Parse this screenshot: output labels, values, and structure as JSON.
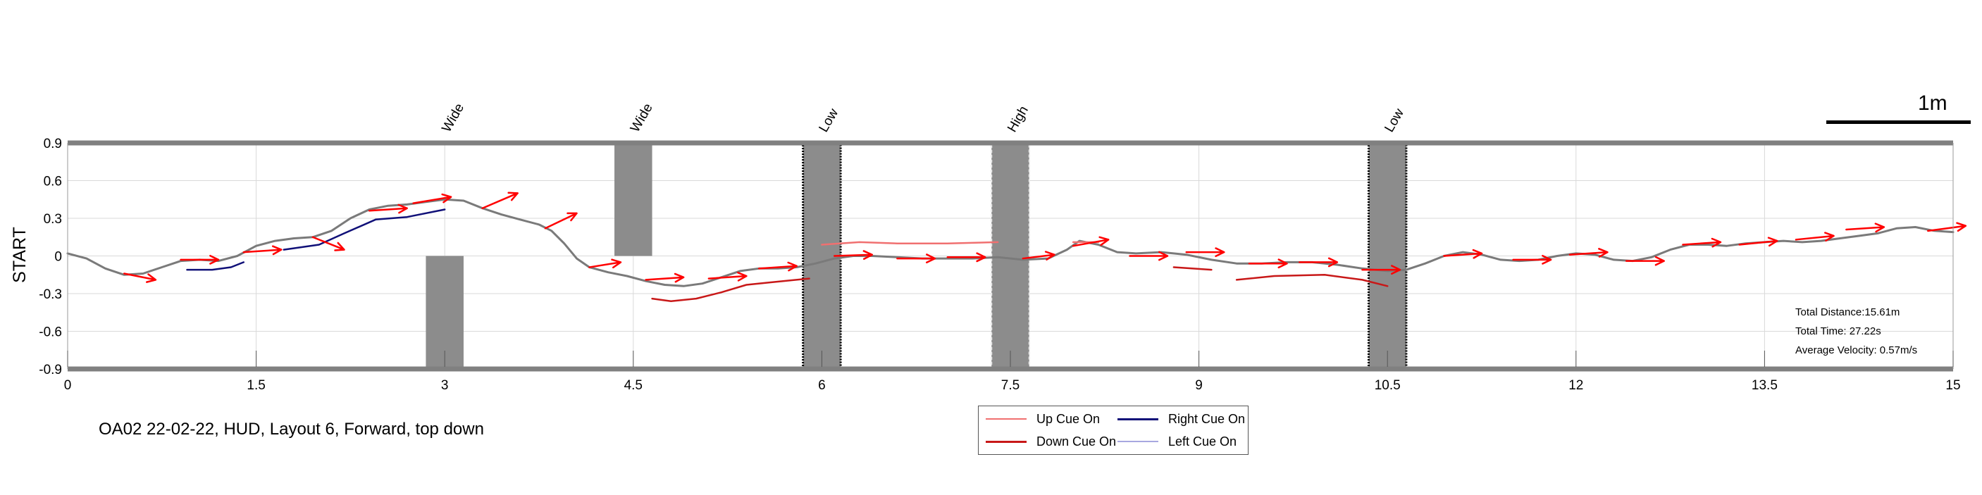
{
  "colors": {
    "path": "#7a7a7a",
    "up_cue": "#f07070",
    "down_cue": "#c81818",
    "right_cue": "#101078",
    "left_cue": "#a8a8e0",
    "arrow": "#ff0000",
    "obstacle": "#8c8c8c",
    "border": "#808080"
  },
  "header": {
    "scale_label": "1m"
  },
  "caption": "OA02 22-02-22, HUD, Layout 6, Forward, top down",
  "stats": {
    "distance": "Total Distance:15.61m",
    "time": "Total Time: 27.22s",
    "velocity": "Average Velocity: 0.57m/s"
  },
  "legend": {
    "up": "Up Cue On",
    "down": "Down Cue On",
    "right": "Right Cue On",
    "left": "Left Cue On"
  },
  "chart_data": {
    "type": "line",
    "title": "",
    "xlabel": "",
    "ylabel": "START",
    "xlim": [
      0,
      15
    ],
    "ylim": [
      -0.9,
      0.9
    ],
    "xticks": [
      "0",
      "1.5",
      "3",
      "4.5",
      "6",
      "7.5",
      "9",
      "10.5",
      "12",
      "13.5",
      "15"
    ],
    "yticks": [
      "0.9",
      "0.6",
      "0.3",
      "0",
      "-0.3",
      "-0.6",
      "-0.9"
    ],
    "grid": true,
    "obstacles": [
      {
        "label": "Wide",
        "type": "wide",
        "x": [
          2.85,
          3.15
        ],
        "y": [
          -0.9,
          0
        ]
      },
      {
        "label": "Wide",
        "type": "wide",
        "x": [
          4.35,
          4.65
        ],
        "y": [
          0,
          0.9
        ]
      },
      {
        "label": "Low",
        "type": "low",
        "x": [
          5.85,
          6.15
        ],
        "y": [
          -0.9,
          0.9
        ]
      },
      {
        "label": "High",
        "type": "high",
        "x": [
          7.35,
          7.65
        ],
        "y": [
          -0.9,
          0.9
        ]
      },
      {
        "label": "Low",
        "type": "low",
        "x": [
          10.35,
          10.65
        ],
        "y": [
          -0.9,
          0.9
        ]
      }
    ],
    "series": [
      {
        "name": "Path",
        "color": "path",
        "x": [
          0,
          0.15,
          0.3,
          0.45,
          0.6,
          0.75,
          0.9,
          1.05,
          1.2,
          1.35,
          1.5,
          1.65,
          1.8,
          1.95,
          2.1,
          2.25,
          2.4,
          2.55,
          2.7,
          2.85,
          3.0,
          3.15,
          3.3,
          3.45,
          3.6,
          3.75,
          3.85,
          3.95,
          4.05,
          4.15,
          4.3,
          4.45,
          4.6,
          4.75,
          4.9,
          5.05,
          5.2,
          5.35,
          5.5,
          5.65,
          5.8,
          5.95,
          6.1,
          6.25,
          6.4,
          6.6,
          6.8,
          7.0,
          7.2,
          7.4,
          7.6,
          7.8,
          7.95,
          8.05,
          8.2,
          8.35,
          8.5,
          8.7,
          8.9,
          9.1,
          9.3,
          9.5,
          9.7,
          9.9,
          10.1,
          10.3,
          10.5,
          10.65,
          10.8,
          10.95,
          11.1,
          11.25,
          11.4,
          11.55,
          11.7,
          11.85,
          12.0,
          12.15,
          12.3,
          12.45,
          12.6,
          12.75,
          12.9,
          13.05,
          13.2,
          13.35,
          13.5,
          13.65,
          13.8,
          13.95,
          14.1,
          14.25,
          14.4,
          14.55,
          14.7,
          14.85,
          15.0
        ],
        "y": [
          0.02,
          -0.02,
          -0.1,
          -0.15,
          -0.14,
          -0.09,
          -0.04,
          -0.03,
          -0.04,
          0.0,
          0.08,
          0.12,
          0.14,
          0.15,
          0.2,
          0.3,
          0.37,
          0.4,
          0.41,
          0.43,
          0.45,
          0.44,
          0.38,
          0.33,
          0.29,
          0.25,
          0.2,
          0.1,
          -0.02,
          -0.09,
          -0.13,
          -0.16,
          -0.2,
          -0.23,
          -0.24,
          -0.22,
          -0.17,
          -0.12,
          -0.1,
          -0.1,
          -0.09,
          -0.06,
          -0.02,
          0.0,
          0.0,
          -0.01,
          -0.02,
          -0.02,
          -0.02,
          -0.01,
          -0.03,
          -0.02,
          0.05,
          0.12,
          0.09,
          0.03,
          0.02,
          0.03,
          0.01,
          -0.03,
          -0.06,
          -0.06,
          -0.05,
          -0.05,
          -0.07,
          -0.1,
          -0.12,
          -0.11,
          -0.06,
          0.0,
          0.03,
          0.01,
          -0.03,
          -0.04,
          -0.03,
          0.0,
          0.02,
          0.01,
          -0.03,
          -0.04,
          -0.01,
          0.05,
          0.09,
          0.09,
          0.08,
          0.1,
          0.11,
          0.12,
          0.11,
          0.12,
          0.14,
          0.16,
          0.18,
          0.22,
          0.23,
          0.2,
          0.19
        ]
      },
      {
        "name": "Up Cue On",
        "color": "up_cue",
        "x": [
          6.0,
          6.3,
          6.6,
          7.0,
          7.4
        ],
        "y": [
          0.09,
          0.11,
          0.1,
          0.1,
          0.11
        ]
      },
      {
        "name": "Up Cue On",
        "color": "up_cue",
        "x": [
          8.0,
          8.2
        ],
        "y": [
          0.11,
          0.11
        ]
      },
      {
        "name": "Down Cue On",
        "color": "down_cue",
        "x": [
          4.65,
          4.8,
          5.0,
          5.2,
          5.4,
          5.6,
          5.9
        ],
        "y": [
          -0.34,
          -0.36,
          -0.34,
          -0.29,
          -0.23,
          -0.21,
          -0.18
        ]
      },
      {
        "name": "Down Cue On",
        "color": "down_cue",
        "x": [
          8.8,
          9.1
        ],
        "y": [
          -0.09,
          -0.11
        ]
      },
      {
        "name": "Down Cue On",
        "color": "down_cue",
        "x": [
          9.3,
          9.6,
          10.0,
          10.3,
          10.5
        ],
        "y": [
          -0.19,
          -0.16,
          -0.15,
          -0.19,
          -0.24
        ]
      },
      {
        "name": "Right Cue On",
        "color": "right_cue",
        "x": [
          0.95,
          1.15,
          1.3,
          1.4
        ],
        "y": [
          -0.11,
          -0.11,
          -0.09,
          -0.05
        ]
      },
      {
        "name": "Right Cue On",
        "color": "right_cue",
        "x": [
          1.72,
          2.0,
          2.2,
          2.45,
          2.7,
          3.0
        ],
        "y": [
          0.05,
          0.09,
          0.18,
          0.29,
          0.31,
          0.37
        ]
      }
    ],
    "heading_arrows": [
      {
        "x": 0.45,
        "y": -0.14,
        "dx": 0.25,
        "dy": -0.05
      },
      {
        "x": 0.9,
        "y": -0.03,
        "dx": 0.3,
        "dy": 0.0
      },
      {
        "x": 1.4,
        "y": 0.03,
        "dx": 0.3,
        "dy": 0.02
      },
      {
        "x": 1.95,
        "y": 0.15,
        "dx": 0.25,
        "dy": -0.1
      },
      {
        "x": 2.4,
        "y": 0.36,
        "dx": 0.3,
        "dy": 0.02
      },
      {
        "x": 2.75,
        "y": 0.42,
        "dx": 0.3,
        "dy": 0.05
      },
      {
        "x": 3.3,
        "y": 0.38,
        "dx": 0.28,
        "dy": 0.12
      },
      {
        "x": 3.8,
        "y": 0.22,
        "dx": 0.25,
        "dy": 0.12
      },
      {
        "x": 4.15,
        "y": -0.09,
        "dx": 0.25,
        "dy": 0.04
      },
      {
        "x": 4.6,
        "y": -0.19,
        "dx": 0.3,
        "dy": 0.02
      },
      {
        "x": 5.1,
        "y": -0.18,
        "dx": 0.3,
        "dy": 0.02
      },
      {
        "x": 5.5,
        "y": -0.1,
        "dx": 0.3,
        "dy": 0.02
      },
      {
        "x": 6.1,
        "y": 0.0,
        "dx": 0.3,
        "dy": 0.01
      },
      {
        "x": 6.6,
        "y": -0.02,
        "dx": 0.3,
        "dy": 0.0
      },
      {
        "x": 7.0,
        "y": -0.01,
        "dx": 0.3,
        "dy": 0.0
      },
      {
        "x": 7.6,
        "y": -0.02,
        "dx": 0.25,
        "dy": 0.03
      },
      {
        "x": 8.0,
        "y": 0.08,
        "dx": 0.28,
        "dy": 0.05
      },
      {
        "x": 8.45,
        "y": 0.0,
        "dx": 0.3,
        "dy": 0.0
      },
      {
        "x": 8.9,
        "y": 0.03,
        "dx": 0.3,
        "dy": 0.0
      },
      {
        "x": 9.4,
        "y": -0.06,
        "dx": 0.3,
        "dy": 0.0
      },
      {
        "x": 9.8,
        "y": -0.05,
        "dx": 0.3,
        "dy": 0.0
      },
      {
        "x": 10.3,
        "y": -0.11,
        "dx": 0.3,
        "dy": 0.0
      },
      {
        "x": 10.95,
        "y": 0.0,
        "dx": 0.3,
        "dy": 0.02
      },
      {
        "x": 11.5,
        "y": -0.03,
        "dx": 0.3,
        "dy": 0.0
      },
      {
        "x": 11.95,
        "y": 0.01,
        "dx": 0.3,
        "dy": 0.02
      },
      {
        "x": 12.4,
        "y": -0.04,
        "dx": 0.3,
        "dy": 0.0
      },
      {
        "x": 12.85,
        "y": 0.09,
        "dx": 0.3,
        "dy": 0.02
      },
      {
        "x": 13.3,
        "y": 0.09,
        "dx": 0.3,
        "dy": 0.03
      },
      {
        "x": 13.75,
        "y": 0.13,
        "dx": 0.3,
        "dy": 0.03
      },
      {
        "x": 14.15,
        "y": 0.21,
        "dx": 0.3,
        "dy": 0.02
      },
      {
        "x": 14.8,
        "y": 0.2,
        "dx": 0.3,
        "dy": 0.04
      }
    ]
  }
}
